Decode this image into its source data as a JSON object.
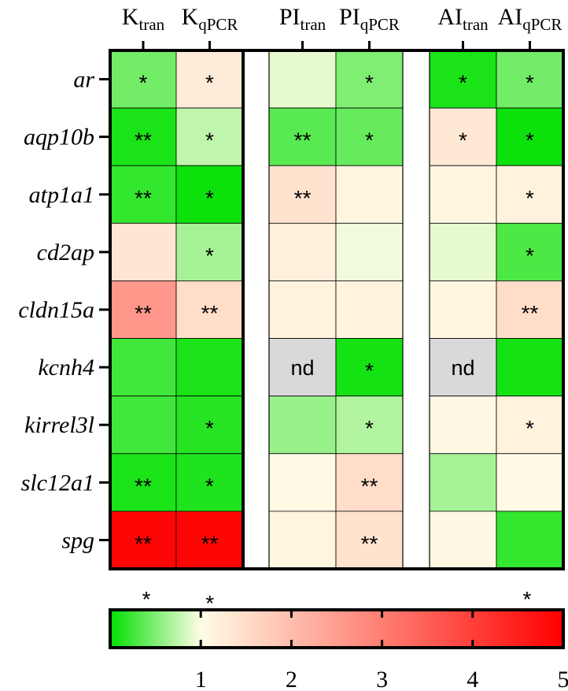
{
  "chart_data": {
    "type": "heatmap",
    "groups": [
      {
        "columns": [
          {
            "base": "K",
            "sub": "tran"
          },
          {
            "base": "K",
            "sub": "qPCR"
          }
        ]
      },
      {
        "columns": [
          {
            "base": "PI",
            "sub": "tran"
          },
          {
            "base": "PI",
            "sub": "qPCR"
          }
        ]
      },
      {
        "columns": [
          {
            "base": "AI",
            "sub": "tran"
          },
          {
            "base": "AI",
            "sub": "qPCR"
          }
        ]
      }
    ],
    "rows": [
      "ar",
      "aqp10b",
      "atp1a1",
      "cd2ap",
      "cldn15a",
      "kcnh4",
      "kirrel3l",
      "slc12a1",
      "spg"
    ],
    "values": [
      [
        0.45,
        1.25,
        0.9,
        0.5,
        0.1,
        0.45
      ],
      [
        0.1,
        0.75,
        0.35,
        0.4,
        1.3,
        0.05
      ],
      [
        0.2,
        0.05,
        1.4,
        1.1,
        1.1,
        1.15
      ],
      [
        1.35,
        0.65,
        1.2,
        0.95,
        0.9,
        0.3
      ],
      [
        2.6,
        1.5,
        1.15,
        1.15,
        1.1,
        1.5
      ],
      [
        0.25,
        0.1,
        null,
        0.08,
        null,
        0.08
      ],
      [
        0.25,
        0.15,
        0.6,
        0.7,
        1.05,
        1.15
      ],
      [
        0.1,
        0.12,
        1.02,
        1.5,
        0.65,
        1.02
      ],
      [
        4.9,
        4.9,
        1.1,
        1.4,
        1.05,
        0.2
      ]
    ],
    "annotations": [
      [
        "*",
        "*",
        "",
        "*",
        "*",
        "*"
      ],
      [
        "**",
        "*",
        "**",
        "*",
        "*",
        "*"
      ],
      [
        "**",
        "*",
        "**",
        "",
        "",
        "*"
      ],
      [
        "",
        "*",
        "",
        "",
        "",
        "*"
      ],
      [
        "**",
        "**",
        "",
        "",
        "",
        "**"
      ],
      [
        "",
        "",
        "nd",
        "*",
        "nd",
        ""
      ],
      [
        "",
        "*",
        "",
        "*",
        "",
        "*"
      ],
      [
        "**",
        "*",
        "",
        "**",
        "",
        ""
      ],
      [
        "**",
        "**",
        "",
        "**",
        "",
        ""
      ]
    ],
    "missing_color": "#d9d9d9",
    "colorbar": {
      "range": [
        0,
        5
      ],
      "ticks": [
        1,
        2,
        3,
        4,
        5
      ],
      "tick_labels": [
        "1",
        "2",
        "3",
        "4",
        "5"
      ],
      "stops": [
        {
          "value": 0,
          "color": "#00e000"
        },
        {
          "value": 1,
          "color": "#fffce6"
        },
        {
          "value": 5,
          "color": "#ff0000"
        }
      ],
      "markers": [
        {
          "value": 0.4,
          "label": "*"
        },
        {
          "value": 1.1,
          "label": "*"
        },
        {
          "value": 4.6,
          "label": "*"
        }
      ]
    }
  }
}
